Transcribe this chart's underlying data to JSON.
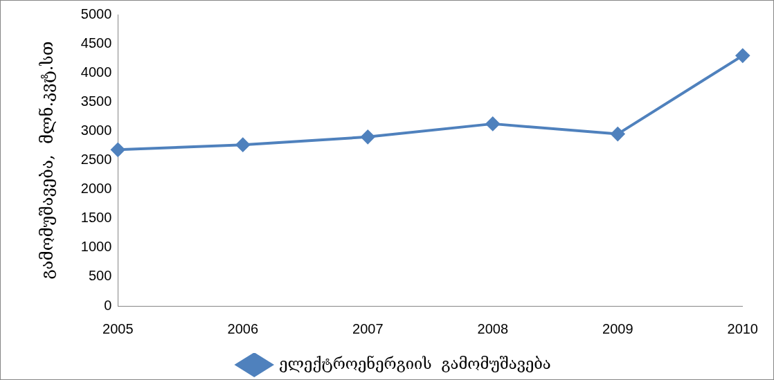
{
  "chart_data": {
    "type": "line",
    "ylabel": "გამომუშავება,  მლნ.კვტ.სთ",
    "categories": [
      "2005",
      "2006",
      "2007",
      "2008",
      "2009",
      "2010"
    ],
    "series": [
      {
        "name": "ელექტროენერგიის  გამომუშავება",
        "color": "#4f81bd",
        "values": [
          2680,
          2765,
          2900,
          3125,
          2950,
          4295
        ]
      }
    ],
    "ylim": [
      0,
      5000
    ],
    "yticks": [
      0,
      500,
      1000,
      1500,
      2000,
      2500,
      3000,
      3500,
      4000,
      4500,
      5000
    ],
    "grid": false,
    "legend": "bottom",
    "marker": "diamond",
    "line_style": "solid"
  }
}
